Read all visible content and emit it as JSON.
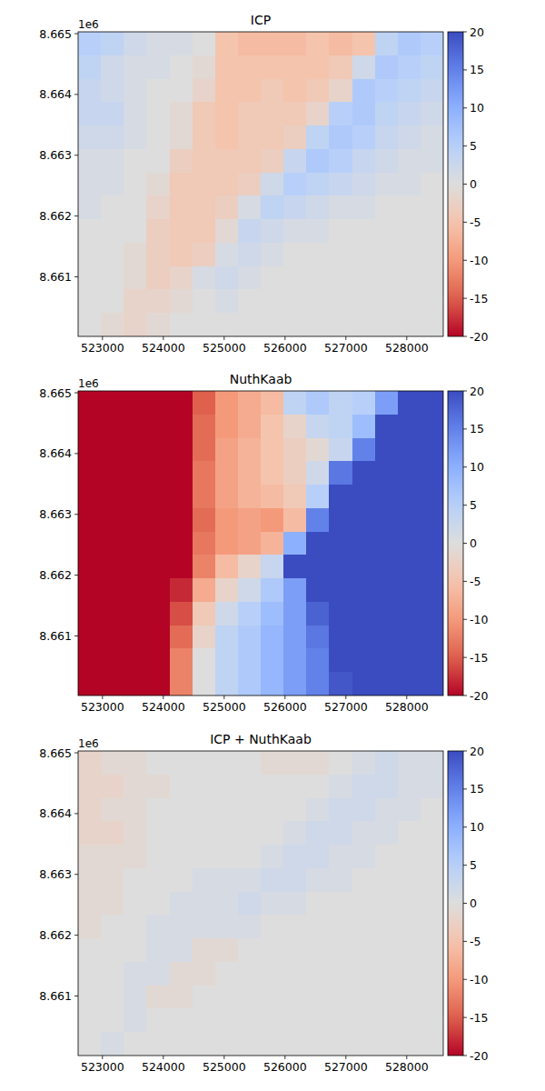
{
  "chart_data": [
    {
      "type": "heatmap",
      "title": "ICP",
      "annotations": [
        {
          "text": "1e6"
        }
      ],
      "xlim": [
        522600,
        528600
      ],
      "ylim": [
        8660020,
        8665030
      ],
      "xticks": [
        523000,
        524000,
        525000,
        526000,
        527000,
        528000
      ],
      "yticks": [
        {
          "value": 8661000,
          "label": "8.661"
        },
        {
          "value": 8662000,
          "label": "8.662"
        },
        {
          "value": 8663000,
          "label": "8.663"
        },
        {
          "value": 8664000,
          "label": "8.664"
        },
        {
          "value": 8665000,
          "label": "8.665"
        }
      ],
      "cells": [
        [
          5,
          4,
          2,
          1,
          1,
          0,
          -5,
          -6,
          -6,
          -6,
          -5,
          -6,
          -5,
          4,
          6,
          5
        ],
        [
          4,
          2,
          1,
          1,
          0,
          -1,
          -5,
          -5,
          -5,
          -5,
          -5,
          -4,
          2,
          6,
          5,
          4
        ],
        [
          3,
          2,
          1,
          0,
          0,
          -2,
          -5,
          -5,
          -4,
          -5,
          -4,
          -2,
          6,
          5,
          4,
          3
        ],
        [
          3,
          3,
          1,
          0,
          -1,
          -4,
          -5,
          -4,
          -4,
          -4,
          -2,
          5,
          6,
          4,
          3,
          2
        ],
        [
          2,
          2,
          1,
          0,
          -1,
          -4,
          -5,
          -4,
          -4,
          -3,
          4,
          6,
          5,
          3,
          2,
          1
        ],
        [
          1,
          1,
          0,
          0,
          -3,
          -4,
          -4,
          -4,
          -3,
          3,
          6,
          5,
          3,
          2,
          1,
          1
        ],
        [
          1,
          1,
          0,
          -1,
          -4,
          -4,
          -4,
          -3,
          2,
          5,
          4,
          3,
          2,
          1,
          1,
          0
        ],
        [
          1,
          0,
          0,
          -2,
          -4,
          -4,
          -3,
          1,
          4,
          3,
          2,
          1,
          1,
          0,
          0,
          0
        ],
        [
          0,
          0,
          0,
          -3,
          -4,
          -4,
          -1,
          3,
          2,
          1,
          1,
          0,
          0,
          0,
          0,
          0
        ],
        [
          0,
          0,
          -1,
          -3,
          -4,
          -3,
          1,
          2,
          1,
          0,
          0,
          0,
          0,
          0,
          0,
          0
        ],
        [
          0,
          0,
          -1,
          -3,
          -2,
          1,
          2,
          1,
          0,
          0,
          0,
          0,
          0,
          0,
          0,
          0
        ],
        [
          0,
          0,
          -2,
          -2,
          -1,
          0,
          1,
          0,
          0,
          0,
          0,
          0,
          0,
          0,
          0,
          0
        ],
        [
          0,
          -1,
          -2,
          -1,
          0,
          0,
          0,
          0,
          0,
          0,
          0,
          0,
          0,
          0,
          0,
          0
        ]
      ],
      "colorbar": {
        "range": [
          -20,
          20
        ],
        "ticks": [
          -20,
          -15,
          -10,
          -5,
          0,
          5,
          10,
          15,
          20
        ]
      }
    },
    {
      "type": "heatmap",
      "title": "NuthKaab",
      "annotations": [
        {
          "text": "1e6"
        }
      ],
      "xlim": [
        522600,
        528600
      ],
      "ylim": [
        8660020,
        8665030
      ],
      "xticks": [
        523000,
        524000,
        525000,
        526000,
        527000,
        528000
      ],
      "yticks": [
        {
          "value": 8661000,
          "label": "8.661"
        },
        {
          "value": 8662000,
          "label": "8.662"
        },
        {
          "value": 8663000,
          "label": "8.663"
        },
        {
          "value": 8664000,
          "label": "8.664"
        },
        {
          "value": 8665000,
          "label": "8.665"
        }
      ],
      "cells": [
        [
          -24,
          -24,
          -24,
          -24,
          -24,
          -15,
          -10,
          -8,
          -6,
          4,
          6,
          4,
          5,
          12,
          24,
          24
        ],
        [
          -24,
          -24,
          -24,
          -24,
          -24,
          -14,
          -10,
          -8,
          -5,
          -2,
          3,
          4,
          8,
          24,
          24,
          24
        ],
        [
          -24,
          -24,
          -24,
          -24,
          -24,
          -14,
          -9,
          -7,
          -5,
          -3,
          -1,
          3,
          15,
          24,
          24,
          24
        ],
        [
          -24,
          -24,
          -24,
          -24,
          -22,
          -13,
          -9,
          -7,
          -5,
          -3,
          2,
          16,
          24,
          24,
          24,
          24
        ],
        [
          -24,
          -24,
          -24,
          -24,
          -22,
          -13,
          -9,
          -7,
          -6,
          -4,
          5,
          24,
          24,
          24,
          24,
          24
        ],
        [
          -24,
          -24,
          -24,
          -24,
          -22,
          -14,
          -10,
          -9,
          -10,
          -6,
          15,
          24,
          24,
          24,
          24,
          24
        ],
        [
          -24,
          -24,
          -24,
          -24,
          -22,
          -13,
          -10,
          -9,
          -7,
          10,
          24,
          24,
          24,
          24,
          24,
          24
        ],
        [
          -24,
          -24,
          -24,
          -24,
          -20,
          -12,
          -6,
          -2,
          3,
          20,
          24,
          24,
          24,
          24,
          24,
          24
        ],
        [
          -24,
          -24,
          -24,
          -24,
          -18,
          -8,
          -2,
          2,
          6,
          12,
          20,
          24,
          24,
          24,
          24,
          24
        ],
        [
          -24,
          -24,
          -24,
          -24,
          -16,
          -4,
          2,
          5,
          8,
          12,
          18,
          24,
          24,
          24,
          24,
          24
        ],
        [
          -24,
          -24,
          -24,
          -24,
          -14,
          -2,
          4,
          6,
          9,
          12,
          16,
          22,
          24,
          24,
          24,
          24
        ],
        [
          -24,
          -24,
          -24,
          -24,
          -12,
          0,
          4,
          6,
          9,
          12,
          15,
          20,
          24,
          24,
          24,
          24
        ],
        [
          -24,
          -24,
          -24,
          -24,
          -12,
          0,
          4,
          6,
          9,
          12,
          15,
          19,
          24,
          24,
          24,
          24
        ]
      ],
      "colorbar": {
        "range": [
          -20,
          20
        ],
        "ticks": [
          -20,
          -15,
          -10,
          -5,
          0,
          5,
          10,
          15,
          20
        ]
      }
    },
    {
      "type": "heatmap",
      "title": "ICP + NuthKaab",
      "annotations": [
        {
          "text": "1e6"
        }
      ],
      "xlim": [
        522600,
        528600
      ],
      "ylim": [
        8660020,
        8665030
      ],
      "xticks": [
        523000,
        524000,
        525000,
        526000,
        527000,
        528000
      ],
      "yticks": [
        {
          "value": 8661000,
          "label": "8.661"
        },
        {
          "value": 8662000,
          "label": "8.662"
        },
        {
          "value": 8663000,
          "label": "8.663"
        },
        {
          "value": 8664000,
          "label": "8.664"
        },
        {
          "value": 8665000,
          "label": "8.665"
        }
      ],
      "cells": [
        [
          -2,
          -1,
          -1,
          0,
          0,
          0,
          0,
          0,
          -1,
          -1,
          -1,
          0,
          1,
          2,
          1,
          1
        ],
        [
          -2,
          -2,
          -1,
          -1,
          0,
          0,
          0,
          0,
          0,
          0,
          0,
          1,
          2,
          2,
          1,
          1
        ],
        [
          -2,
          -1,
          -1,
          0,
          0,
          0,
          0,
          0,
          0,
          0,
          1,
          2,
          2,
          1,
          1,
          0
        ],
        [
          -2,
          -2,
          -1,
          0,
          0,
          0,
          0,
          0,
          0,
          1,
          2,
          2,
          1,
          1,
          0,
          0
        ],
        [
          -1,
          -1,
          -1,
          0,
          0,
          0,
          0,
          0,
          1,
          2,
          2,
          1,
          1,
          0,
          0,
          0
        ],
        [
          -1,
          -1,
          0,
          0,
          0,
          1,
          1,
          1,
          2,
          2,
          1,
          1,
          0,
          0,
          0,
          0
        ],
        [
          -1,
          -1,
          0,
          0,
          1,
          1,
          1,
          2,
          1,
          1,
          0,
          0,
          0,
          0,
          0,
          0
        ],
        [
          -1,
          0,
          0,
          1,
          1,
          1,
          1,
          1,
          0,
          0,
          0,
          0,
          0,
          0,
          0,
          0
        ],
        [
          0,
          0,
          0,
          1,
          1,
          -1,
          -1,
          0,
          0,
          0,
          0,
          0,
          0,
          0,
          0,
          0
        ],
        [
          0,
          0,
          1,
          1,
          -1,
          -1,
          0,
          0,
          0,
          0,
          0,
          0,
          0,
          0,
          0,
          0
        ],
        [
          0,
          0,
          1,
          -1,
          -1,
          0,
          0,
          0,
          0,
          0,
          0,
          0,
          0,
          0,
          0,
          0
        ],
        [
          0,
          0,
          1,
          0,
          0,
          0,
          0,
          0,
          0,
          0,
          0,
          0,
          0,
          0,
          0,
          0
        ],
        [
          0,
          1,
          0,
          0,
          0,
          0,
          0,
          0,
          0,
          0,
          0,
          0,
          0,
          0,
          0,
          0
        ]
      ],
      "colorbar": {
        "range": [
          -20,
          20
        ],
        "ticks": [
          -20,
          -15,
          -10,
          -5,
          0,
          5,
          10,
          15,
          20
        ]
      }
    }
  ]
}
